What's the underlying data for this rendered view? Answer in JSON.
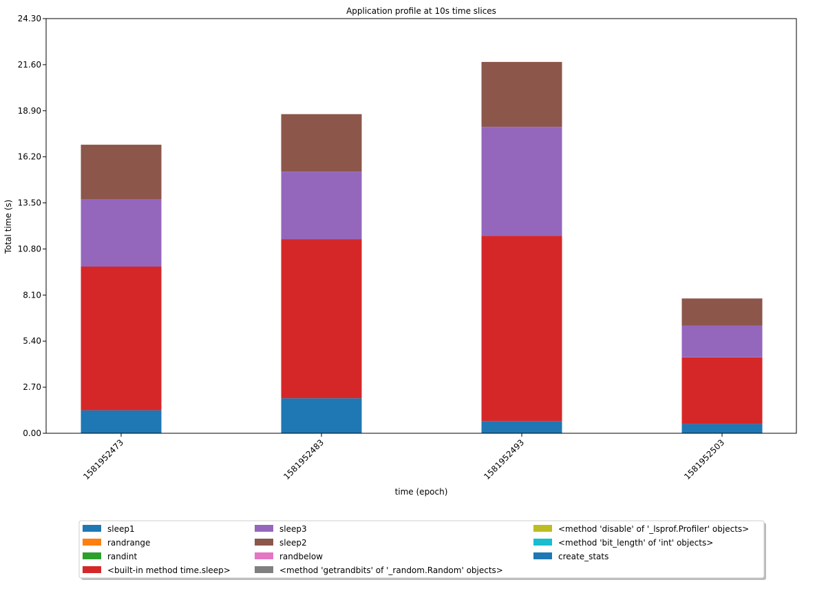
{
  "chart_data": {
    "type": "bar",
    "stacked": true,
    "title": "Application profile at 10s time slices",
    "xlabel": "time (epoch)",
    "ylabel": "Total time (s)",
    "ylim": [
      0,
      24.3
    ],
    "yticks": [
      "0.00",
      "2.70",
      "5.40",
      "8.10",
      "10.80",
      "13.50",
      "16.20",
      "18.90",
      "21.60",
      "24.30"
    ],
    "categories": [
      "1581952473",
      "1581952483",
      "1581952493",
      "1581952503"
    ],
    "grid": false,
    "legend_position": "bottom",
    "legend_columns": [
      [
        "sleep1",
        "randrange",
        "randint",
        "<built-in method time.sleep>"
      ],
      [
        "sleep3",
        "sleep2",
        "randbelow",
        "<method 'getrandbits' of '_random.Random' objects>"
      ],
      [
        "<method 'disable' of '_lsprof.Profiler' objects>",
        "<method 'bit_length' of 'int' objects>",
        "create_stats"
      ]
    ],
    "series": [
      {
        "name": "sleep1",
        "color": "#1f77b4",
        "values": [
          1.35,
          2.05,
          0.72,
          0.55
        ]
      },
      {
        "name": "randrange",
        "color": "#ff7f0e",
        "values": [
          0,
          0,
          0,
          0
        ]
      },
      {
        "name": "randint",
        "color": "#2ca02c",
        "values": [
          0,
          0,
          0,
          0
        ]
      },
      {
        "name": "<built-in method time.sleep>",
        "color": "#d62728",
        "values": [
          8.42,
          9.33,
          10.85,
          3.9
        ]
      },
      {
        "name": "sleep3",
        "color": "#9467bd",
        "values": [
          3.94,
          3.95,
          6.39,
          1.85
        ]
      },
      {
        "name": "sleep2",
        "color": "#8c564b",
        "values": [
          3.2,
          3.37,
          3.8,
          1.6
        ]
      },
      {
        "name": "randbelow",
        "color": "#e377c2",
        "values": [
          0,
          0,
          0,
          0
        ]
      },
      {
        "name": "<method 'getrandbits' of '_random.Random' objects>",
        "color": "#7f7f7f",
        "values": [
          0,
          0,
          0,
          0
        ]
      },
      {
        "name": "<method 'disable' of '_lsprof.Profiler' objects>",
        "color": "#bcbd22",
        "values": [
          0,
          0,
          0,
          0
        ]
      },
      {
        "name": "<method 'bit_length' of 'int' objects>",
        "color": "#17becf",
        "values": [
          0,
          0,
          0,
          0
        ]
      },
      {
        "name": "create_stats",
        "color": "#1f77b4",
        "values": [
          0,
          0,
          0,
          0
        ]
      }
    ]
  }
}
